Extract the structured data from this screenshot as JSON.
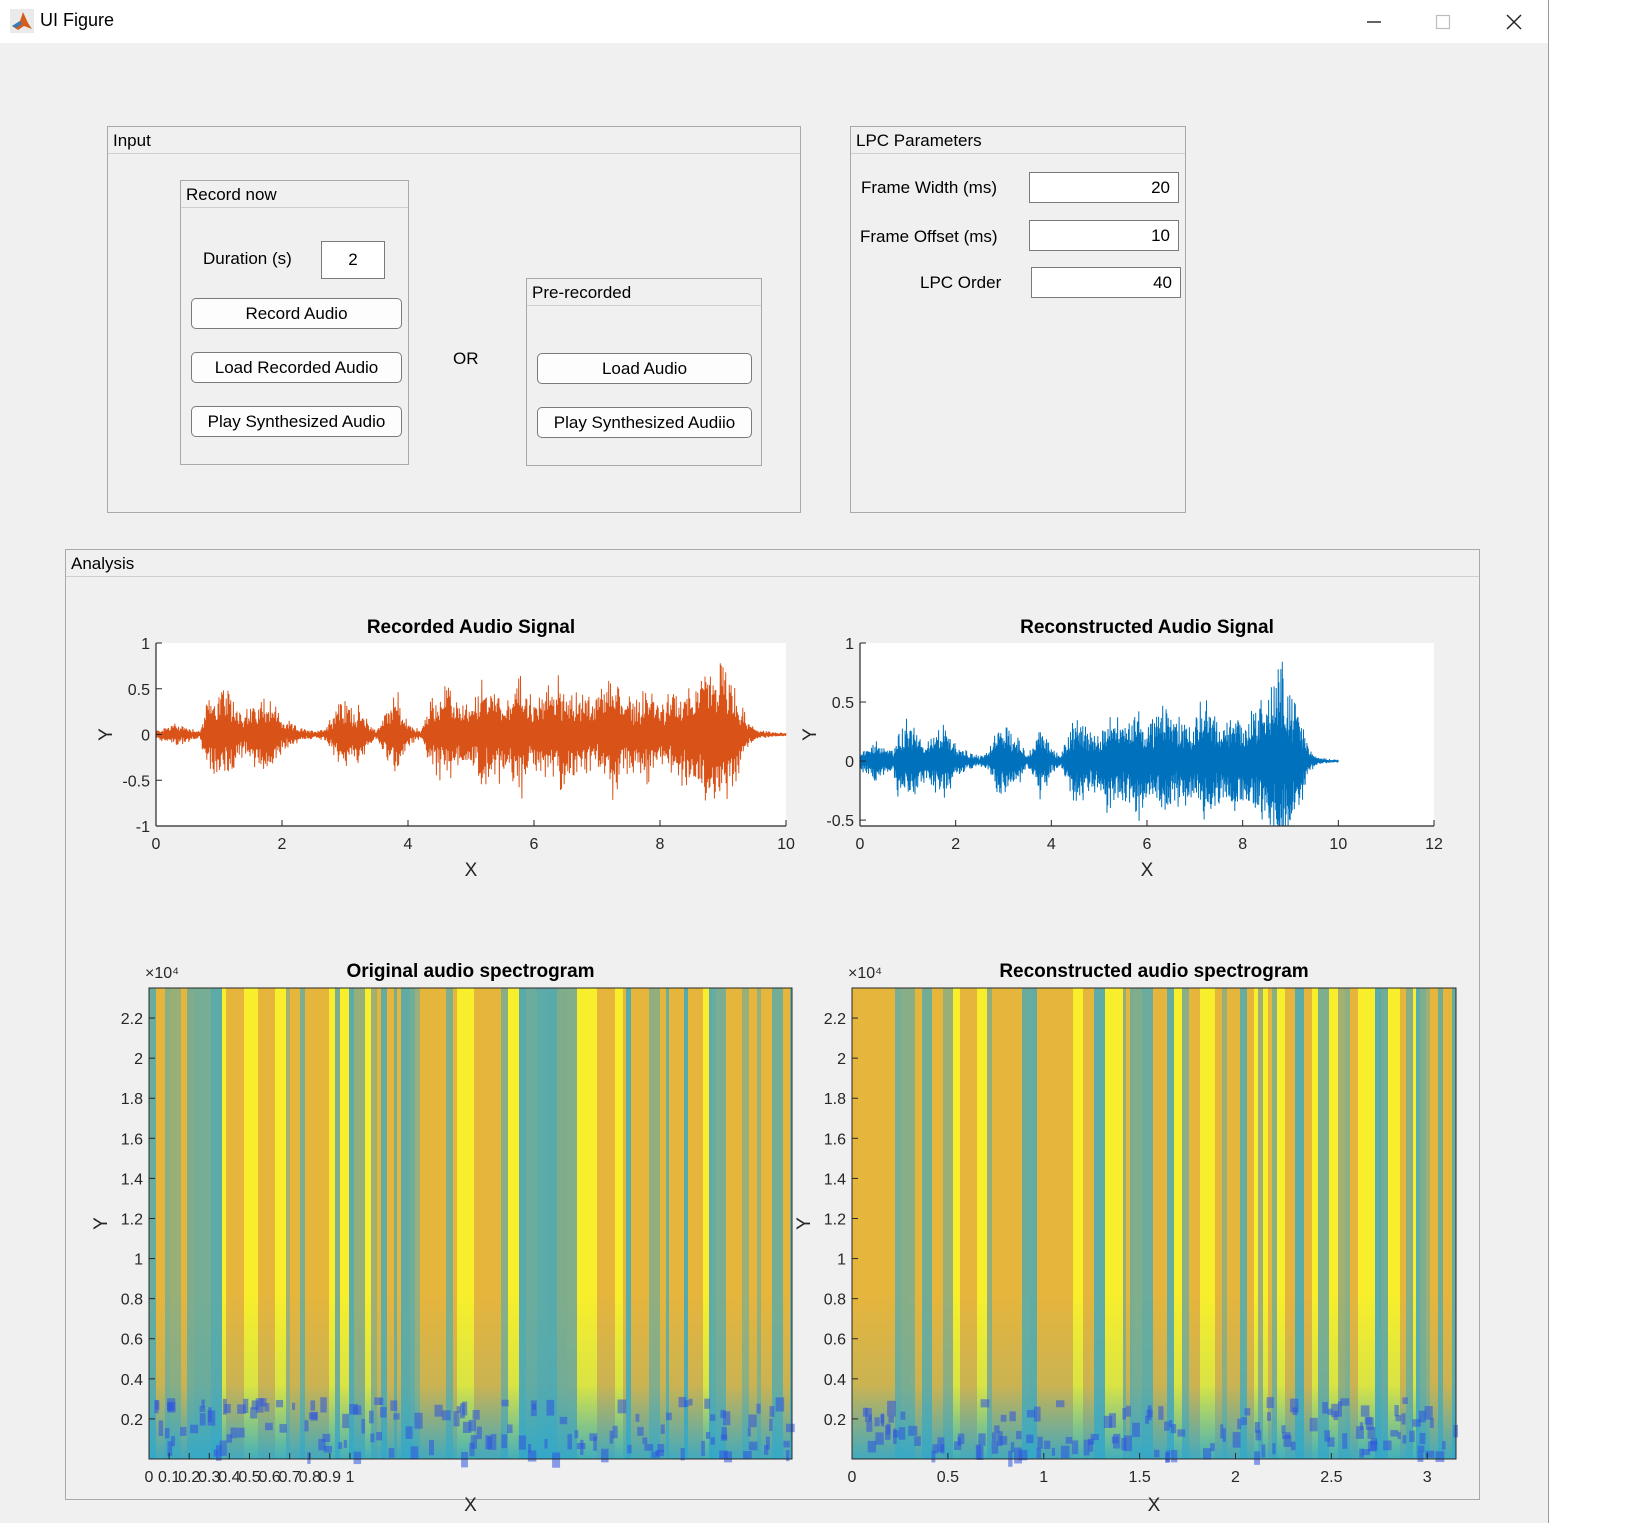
{
  "window": {
    "title": "UI Figure",
    "controls": {
      "minimize_icon": "minimize-icon",
      "maximize_icon": "maximize-icon",
      "close_icon": "close-icon"
    }
  },
  "input_panel": {
    "title": "Input",
    "record_now": {
      "title": "Record now",
      "duration_label": "Duration (s)",
      "duration_value": "2",
      "record_button": "Record Audio",
      "load_button": "Load Recorded Audio",
      "play_button": "Play Synthesized Audio"
    },
    "or_label": "OR",
    "pre_recorded": {
      "title": "Pre-recorded",
      "load_button": "Load Audio",
      "play_button": "Play Synthesized Audiio"
    }
  },
  "lpc_panel": {
    "title": "LPC Parameters",
    "frame_width_label": "Frame Width (ms)",
    "frame_width_value": "20",
    "frame_offset_label": "Frame Offset (ms)",
    "frame_offset_value": "10",
    "lpc_order_label": "LPC Order",
    "lpc_order_value": "40"
  },
  "analysis_panel": {
    "title": "Analysis"
  },
  "colors": {
    "recorded_line": "#d95319",
    "reconstructed_line": "#0072bd",
    "spec_yellow": "#f9f12a",
    "spec_orange": "#e6b53c",
    "spec_cyan": "#2fa8cc",
    "spec_blue": "#3054e0"
  },
  "chart_data": [
    {
      "type": "line",
      "title": "Recorded Audio Signal",
      "xlabel": "X",
      "ylabel": "Y",
      "xlim": [
        0,
        10
      ],
      "ylim": [
        -1,
        1
      ],
      "xticks": [
        "0",
        "2",
        "4",
        "6",
        "8",
        "10"
      ],
      "yticks": [
        "-1",
        "-0.5",
        "0",
        "0.5",
        "1"
      ],
      "envelope": {
        "x": [
          0,
          0.3,
          0.7,
          0.8,
          1.0,
          1.2,
          1.4,
          1.6,
          1.8,
          2.0,
          2.3,
          2.5,
          2.7,
          2.9,
          3.2,
          3.4,
          3.5,
          3.7,
          3.8,
          3.9,
          4.0,
          4.2,
          4.4,
          4.6,
          4.8,
          5.0,
          5.2,
          5.4,
          5.6,
          5.8,
          6.0,
          6.2,
          6.4,
          6.6,
          6.8,
          7.0,
          7.2,
          7.4,
          7.6,
          7.8,
          8.0,
          8.2,
          8.4,
          8.6,
          8.8,
          9.0,
          9.2,
          9.4,
          9.6,
          9.8,
          10.0
        ],
        "amplitude": [
          0.05,
          0.15,
          0.05,
          0.4,
          0.6,
          0.5,
          0.3,
          0.4,
          0.55,
          0.2,
          0.08,
          0.05,
          0.1,
          0.45,
          0.35,
          0.15,
          0.05,
          0.4,
          0.62,
          0.3,
          0.15,
          0.05,
          0.5,
          0.6,
          0.45,
          0.35,
          0.7,
          0.6,
          0.5,
          0.75,
          0.4,
          0.6,
          0.7,
          0.5,
          0.55,
          0.45,
          0.85,
          0.55,
          0.45,
          0.6,
          0.4,
          0.5,
          0.6,
          0.7,
          0.85,
          0.9,
          0.55,
          0.15,
          0.05,
          0.03,
          0.02
        ]
      }
    },
    {
      "type": "line",
      "title": "Reconstructed Audio Signal",
      "xlabel": "X",
      "ylabel": "Y",
      "xlim": [
        0,
        12
      ],
      "ylim": [
        -0.55,
        1
      ],
      "xticks": [
        "0",
        "2",
        "4",
        "6",
        "8",
        "10",
        "12"
      ],
      "yticks": [
        "-0.5",
        "0",
        "0.5",
        "1"
      ],
      "envelope": {
        "x": [
          0,
          0.3,
          0.7,
          0.8,
          1.0,
          1.2,
          1.4,
          1.6,
          1.8,
          2.0,
          2.3,
          2.5,
          2.7,
          2.9,
          3.2,
          3.4,
          3.5,
          3.7,
          3.8,
          3.9,
          4.0,
          4.2,
          4.4,
          4.6,
          4.8,
          5.0,
          5.2,
          5.4,
          5.6,
          5.8,
          6.0,
          6.2,
          6.4,
          6.6,
          6.8,
          7.0,
          7.2,
          7.4,
          7.6,
          7.8,
          8.0,
          8.2,
          8.4,
          8.6,
          8.8,
          9.0,
          9.2,
          9.4,
          9.6,
          9.8,
          10.0
        ],
        "amplitude": [
          0.1,
          0.2,
          0.1,
          0.35,
          0.4,
          0.3,
          0.2,
          0.3,
          0.35,
          0.15,
          0.08,
          0.05,
          0.1,
          0.35,
          0.3,
          0.15,
          0.05,
          0.3,
          0.4,
          0.25,
          0.12,
          0.05,
          0.35,
          0.45,
          0.3,
          0.25,
          0.5,
          0.45,
          0.4,
          0.6,
          0.35,
          0.45,
          0.55,
          0.4,
          0.45,
          0.35,
          0.65,
          0.45,
          0.35,
          0.55,
          0.4,
          0.5,
          0.6,
          0.7,
          0.95,
          0.75,
          0.45,
          0.1,
          0.04,
          0.02,
          0.01
        ]
      }
    },
    {
      "type": "heatmap",
      "title": "Original audio spectrogram",
      "xlabel": "X",
      "ylabel": "Y",
      "y_exponent": "×10⁴",
      "xlim": [
        0,
        3.2
      ],
      "ylim": [
        0,
        2.35
      ],
      "xticks": [
        "0",
        "0.1",
        "0.2",
        "0.3",
        "0.4",
        "0.5",
        "0.6",
        "0.7",
        "0.8",
        "0.9",
        "1"
      ],
      "yticks": [
        "0.2",
        "0.4",
        "0.6",
        "0.8",
        "1",
        "1.2",
        "1.4",
        "1.6",
        "1.8",
        "2",
        "2.2"
      ]
    },
    {
      "type": "heatmap",
      "title": "Reconstructed audio spectrogram",
      "xlabel": "X",
      "ylabel": "Y",
      "y_exponent": "×10⁴",
      "xlim": [
        0,
        3.15
      ],
      "ylim": [
        0,
        2.35
      ],
      "xticks": [
        "0",
        "0.5",
        "1",
        "1.5",
        "2",
        "2.5",
        "3"
      ],
      "yticks": [
        "0.2",
        "0.4",
        "0.6",
        "0.8",
        "1",
        "1.2",
        "1.4",
        "1.6",
        "1.8",
        "2",
        "2.2"
      ]
    }
  ]
}
